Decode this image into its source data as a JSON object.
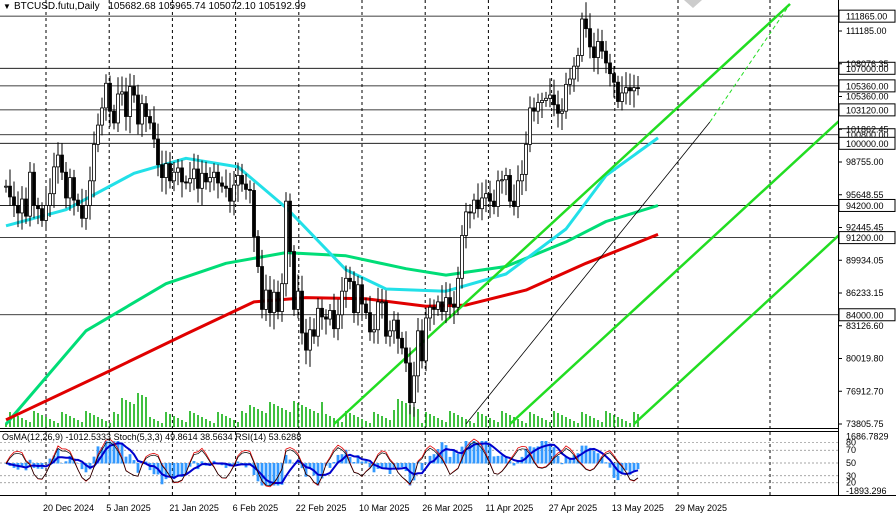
{
  "header": {
    "symbol": "BTCUSD.futu,Daily",
    "ohlc": "105682.68 105965.74 105072.10 105192.99"
  },
  "indicator_label": "OsMA(12,26,9) -1012.5333  Stoch(5,3,3) 49.8614 38.5634  RSI(14) 53.6288",
  "colors": {
    "candle": "#000000",
    "ma_slow": "#e00000",
    "ma_mid": "#00dd77",
    "ma_fast": "#22e0e8",
    "channel": "#22dd22",
    "volume": "#00aa00",
    "osma": "#3399ff",
    "macd_line": "#0000cc"
  },
  "chart_data": {
    "type": "candlestick",
    "ylim": [
      73805.75,
      113000
    ],
    "ticks_y": [
      "111185.00",
      "108076.35",
      "105360.00",
      "101862.45",
      "98755.00",
      "95648.55",
      "92445.45",
      "89934.05",
      "86233.15",
      "83126.60",
      "80019.80",
      "76912.70",
      "73805.75"
    ],
    "levels": [
      {
        "label": "111865.00",
        "value": 111865
      },
      {
        "label": "107000.00",
        "value": 107000
      },
      {
        "label": "105360.00",
        "value": 105360
      },
      {
        "label": "103120.00",
        "value": 103120
      },
      {
        "label": "100800.00",
        "value": 100800
      },
      {
        "label": "100000.00",
        "value": 100000
      },
      {
        "label": "94200.00",
        "value": 94200
      },
      {
        "label": "91200.00",
        "value": 91200
      },
      {
        "label": "84000.00",
        "value": 84000
      }
    ],
    "x_labels": [
      "20 Dec 2024",
      "5 Jan 2025",
      "21 Jan 2025",
      "6 Feb 2025",
      "22 Feb 2025",
      "10 Mar 2025",
      "26 Mar 2025",
      "11 Apr 2025",
      "27 Apr 2025",
      "13 May 2025",
      "29 May 2025"
    ],
    "indicator_ticks": [
      "1686.7829",
      "80",
      "70",
      "50",
      "30",
      "20",
      "-1893.296"
    ],
    "closes": [
      96000,
      95000,
      94200,
      93500,
      94800,
      93200,
      97300,
      94200,
      93900,
      92800,
      94200,
      95300,
      97800,
      98900,
      97300,
      94900,
      96800,
      94700,
      94200,
      93000,
      94200,
      96500,
      99900,
      101700,
      103300,
      105600,
      103000,
      101900,
      104600,
      104800,
      102500,
      105300,
      104500,
      101800,
      103700,
      102500,
      101900,
      100400,
      98000,
      96800,
      98100,
      96500,
      97300,
      97700,
      96400,
      96300,
      96700,
      97600,
      95800,
      97200,
      96400,
      96800,
      97300,
      96300,
      96000,
      95800,
      94600,
      96100,
      97000,
      96200,
      95700,
      95600,
      91300,
      88500,
      84500,
      86300,
      84200,
      86100,
      84300,
      86900,
      94600,
      89900,
      84500,
      86200,
      82300,
      80700,
      82600,
      82000,
      84600,
      83800,
      83600,
      84400,
      82700,
      84000,
      86200,
      87400,
      87100,
      84200,
      86800,
      85000,
      84200,
      82400,
      82600,
      85200,
      85200,
      82000,
      82500,
      83500,
      81800,
      80900,
      79500,
      75800,
      78300,
      82500,
      79700,
      83700,
      84700,
      84500,
      85200,
      84300,
      85600,
      85000,
      84700,
      87400,
      91400,
      93600,
      93500,
      94700,
      93900,
      94900,
      95300,
      94600,
      94100,
      96500,
      96600,
      97000,
      94600,
      94100,
      96500,
      97100,
      99900,
      103300,
      103000,
      103800,
      104000,
      104200,
      104500,
      103600,
      102800,
      103000,
      105500,
      106000,
      107200,
      108200,
      111600,
      110700,
      109000,
      108000,
      109500,
      108600,
      107500,
      106500,
      105700,
      103900,
      104700,
      105200,
      104900,
      105200,
      105192
    ],
    "ma_fast": [
      [
        0,
        92300
      ],
      [
        15,
        93800
      ],
      [
        32,
        97200
      ],
      [
        45,
        98600
      ],
      [
        58,
        97800
      ],
      [
        70,
        94000
      ],
      [
        85,
        88200
      ],
      [
        95,
        86400
      ],
      [
        110,
        86200
      ],
      [
        125,
        87800
      ],
      [
        140,
        92000
      ],
      [
        150,
        97000
      ],
      [
        163,
        100500
      ]
    ],
    "ma_mid": [
      [
        0,
        73800
      ],
      [
        20,
        82500
      ],
      [
        40,
        86900
      ],
      [
        55,
        88800
      ],
      [
        70,
        89800
      ],
      [
        85,
        89500
      ],
      [
        100,
        88300
      ],
      [
        110,
        87700
      ],
      [
        125,
        88500
      ],
      [
        140,
        90800
      ],
      [
        150,
        92700
      ],
      [
        163,
        94200
      ]
    ],
    "ma_slow": [
      [
        0,
        74200
      ],
      [
        25,
        78600
      ],
      [
        45,
        82200
      ],
      [
        62,
        85200
      ],
      [
        75,
        85600
      ],
      [
        90,
        85500
      ],
      [
        105,
        84800
      ],
      [
        115,
        84900
      ],
      [
        130,
        86300
      ],
      [
        145,
        88800
      ],
      [
        163,
        91500
      ]
    ],
    "channels": [
      [
        [
          82,
          73805
        ],
        [
          196,
          113000
        ]
      ],
      [
        [
          126,
          73805
        ],
        [
          240,
          113000
        ]
      ],
      [
        [
          157,
          73805
        ],
        [
          271,
          113000
        ]
      ],
      [
        [
          115,
          73805
        ],
        [
          176,
          102000
        ]
      ]
    ],
    "channel_ext": [
      [
        176,
        102000
      ],
      [
        196,
        113000
      ]
    ]
  }
}
